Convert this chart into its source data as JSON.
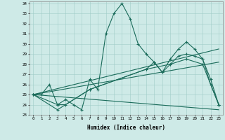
{
  "xlabel": "Humidex (Indice chaleur)",
  "xlim": [
    -0.5,
    23.5
  ],
  "ylim": [
    23,
    34.2
  ],
  "yticks": [
    23,
    24,
    25,
    26,
    27,
    28,
    29,
    30,
    31,
    32,
    33,
    34
  ],
  "xticks": [
    0,
    1,
    2,
    3,
    4,
    5,
    6,
    7,
    8,
    9,
    10,
    11,
    12,
    13,
    14,
    15,
    16,
    17,
    18,
    19,
    20,
    21,
    22,
    23
  ],
  "bg_color": "#ceeae7",
  "line_color": "#1a6b5a",
  "series1_x": [
    0,
    1,
    2,
    3,
    4,
    5,
    6,
    7,
    8,
    9,
    10,
    11,
    12,
    13,
    14,
    15,
    16,
    17,
    18,
    19,
    20,
    21,
    22,
    23
  ],
  "series1_y": [
    25.0,
    25.0,
    26.0,
    24.0,
    24.5,
    24.0,
    23.5,
    26.5,
    25.5,
    31.0,
    33.0,
    34.0,
    32.5,
    30.0,
    29.0,
    28.2,
    27.2,
    28.5,
    29.5,
    30.2,
    29.5,
    28.5,
    26.0,
    24.0
  ],
  "series2_x": [
    0,
    3,
    4,
    7,
    14,
    15,
    16,
    17,
    18,
    19,
    20,
    21,
    22,
    23
  ],
  "series2_y": [
    25.0,
    24.0,
    24.0,
    25.5,
    27.5,
    28.2,
    27.2,
    28.0,
    28.8,
    29.0,
    28.8,
    28.5,
    26.5,
    24.0
  ],
  "series3_x": [
    0,
    3,
    7,
    14,
    17,
    19,
    21,
    23
  ],
  "series3_y": [
    25.0,
    23.5,
    25.5,
    27.5,
    28.0,
    28.5,
    28.0,
    24.0
  ],
  "line1_x": [
    0,
    23
  ],
  "line1_y": [
    25.0,
    23.5
  ],
  "line2_x": [
    0,
    23
  ],
  "line2_y": [
    25.0,
    29.5
  ],
  "line3_x": [
    0,
    23
  ],
  "line3_y": [
    25.0,
    28.2
  ]
}
